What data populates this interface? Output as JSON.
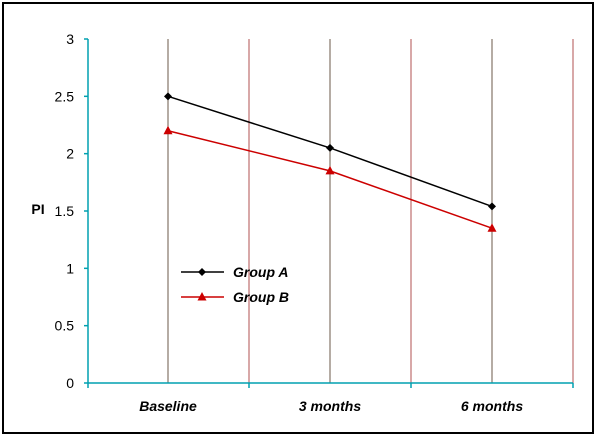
{
  "chart_data": {
    "type": "line",
    "title": "",
    "xlabel": "",
    "ylabel": "PI",
    "categories": [
      "Baseline",
      "3 months",
      "6 months"
    ],
    "ylim": [
      0,
      3
    ],
    "yticks": [
      "0",
      "0.5",
      "1",
      "1.5",
      "2",
      "2.5",
      "3"
    ],
    "legend_position": "middle-left",
    "grid": "vertical",
    "series": [
      {
        "name": "Group A",
        "values": [
          2.5,
          2.05,
          1.54
        ],
        "color": "#000000",
        "marker": "diamond"
      },
      {
        "name": "Group B",
        "values": [
          2.2,
          1.85,
          1.35
        ],
        "color": "#cc0000",
        "marker": "triangle"
      }
    ],
    "colors": {
      "axis": "#00a0b0",
      "grid_dark": "#6b5a4a",
      "grid_red": "#b05050"
    }
  }
}
